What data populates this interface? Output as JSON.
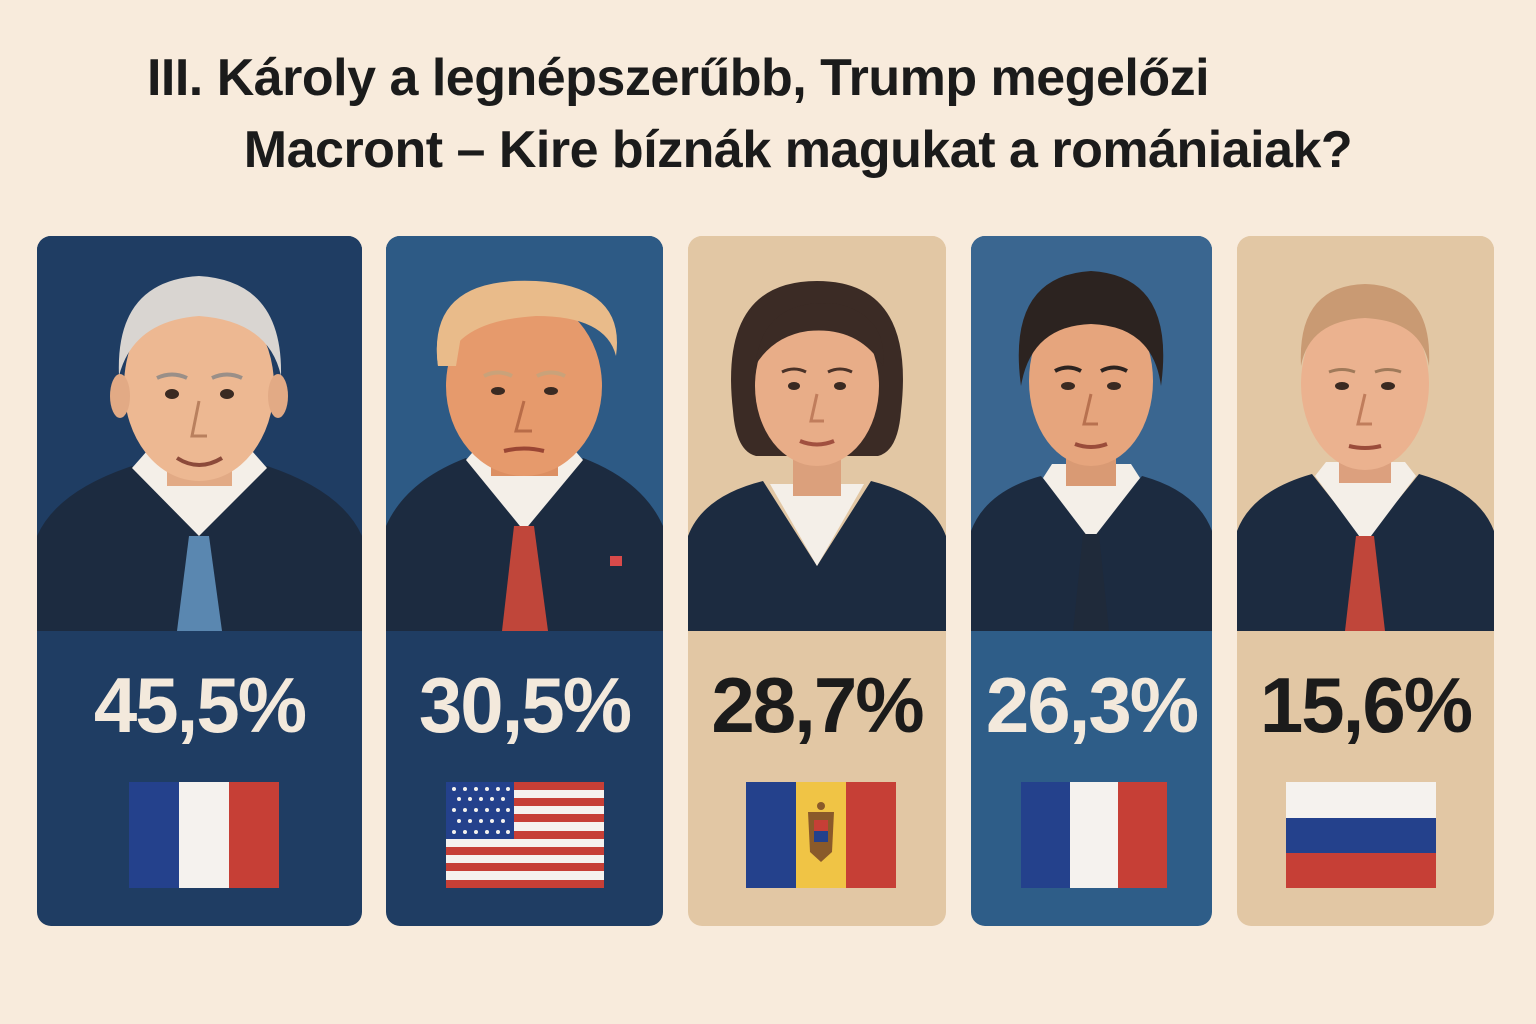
{
  "title": {
    "line1": "III. Károly a legnépszerűbb, Trump megelőzi",
    "line2": "Macront – Kire bíznák magukat a romániaiak?"
  },
  "cards": [
    {
      "value": "45,5%",
      "flag": "france",
      "person": "charles-iii",
      "bg": "#1f3d63",
      "text_color": "#f3e9dc"
    },
    {
      "value": "30,5%",
      "flag": "usa",
      "person": "trump",
      "bg": "#1f3d63",
      "text_color": "#f3e9dc"
    },
    {
      "value": "28,7%",
      "flag": "moldova",
      "person": "sandu",
      "bg": "#e2c7a4",
      "text_color": "#1b1b1b"
    },
    {
      "value": "26,3%",
      "flag": "france",
      "person": "macron",
      "bg": "#2e5d88",
      "text_color": "#f3e9dc"
    },
    {
      "value": "15,6%",
      "flag": "russia",
      "person": "putin",
      "bg": "#e2c7a4",
      "text_color": "#1b1b1b"
    }
  ]
}
